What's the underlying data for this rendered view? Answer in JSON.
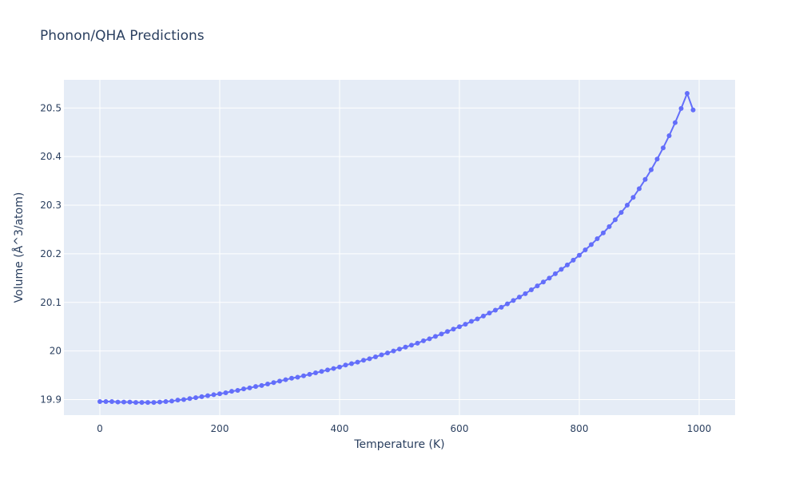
{
  "chart_data": {
    "type": "line",
    "title": "Phonon/QHA Predictions",
    "xlabel": "Temperature (K)",
    "ylabel": "Volume (Å^3/atom)",
    "xlim": [
      -60,
      1060
    ],
    "ylim": [
      19.868,
      20.558
    ],
    "x_ticks": [
      0,
      200,
      400,
      600,
      800,
      1000
    ],
    "y_ticks": [
      19.9,
      20.0,
      20.1,
      20.2,
      20.3,
      20.4,
      20.5
    ],
    "x_tick_labels": [
      "0",
      "200",
      "400",
      "600",
      "800",
      "1000"
    ],
    "y_tick_labels": [
      "19.9",
      "20",
      "20.1",
      "20.2",
      "20.3",
      "20.4",
      "20.5"
    ],
    "grid": true,
    "series": [
      {
        "color": "#636efa",
        "mode": "lines+markers",
        "x": [
          0,
          10,
          20,
          30,
          40,
          50,
          60,
          70,
          80,
          90,
          100,
          110,
          120,
          130,
          140,
          150,
          160,
          170,
          180,
          190,
          200,
          210,
          220,
          230,
          240,
          250,
          260,
          270,
          280,
          290,
          300,
          310,
          320,
          330,
          340,
          350,
          360,
          370,
          380,
          390,
          400,
          410,
          420,
          430,
          440,
          450,
          460,
          470,
          480,
          490,
          500,
          510,
          520,
          530,
          540,
          550,
          560,
          570,
          580,
          590,
          600,
          610,
          620,
          630,
          640,
          650,
          660,
          670,
          680,
          690,
          700,
          710,
          720,
          730,
          740,
          750,
          760,
          770,
          780,
          790,
          800,
          810,
          820,
          830,
          840,
          850,
          860,
          870,
          880,
          890,
          900,
          910,
          920,
          930,
          940,
          950,
          960,
          970,
          980,
          990
        ],
        "y": [
          19.896,
          19.896,
          19.896,
          19.895,
          19.895,
          19.895,
          19.894,
          19.894,
          19.894,
          19.894,
          19.895,
          19.896,
          19.897,
          19.899,
          19.9,
          19.902,
          19.904,
          19.906,
          19.908,
          19.91,
          19.912,
          19.914,
          19.917,
          19.919,
          19.922,
          19.924,
          19.927,
          19.929,
          19.932,
          19.935,
          19.938,
          19.941,
          19.944,
          19.946,
          19.949,
          19.952,
          19.955,
          19.958,
          19.961,
          19.964,
          19.967,
          19.971,
          19.974,
          19.977,
          19.981,
          19.984,
          19.988,
          19.992,
          19.996,
          20.0,
          20.004,
          20.008,
          20.012,
          20.016,
          20.021,
          20.025,
          20.03,
          20.035,
          20.04,
          20.045,
          20.05,
          20.055,
          20.061,
          20.066,
          20.072,
          20.078,
          20.084,
          20.09,
          20.097,
          20.104,
          20.111,
          20.118,
          20.126,
          20.134,
          20.142,
          20.15,
          20.159,
          20.168,
          20.177,
          20.187,
          20.197,
          20.208,
          20.219,
          20.231,
          20.243,
          20.256,
          20.27,
          20.285,
          20.3,
          20.316,
          20.334,
          20.353,
          20.373,
          20.395,
          20.418,
          20.443,
          20.47,
          20.499,
          20.53,
          20.496
        ]
      }
    ]
  }
}
